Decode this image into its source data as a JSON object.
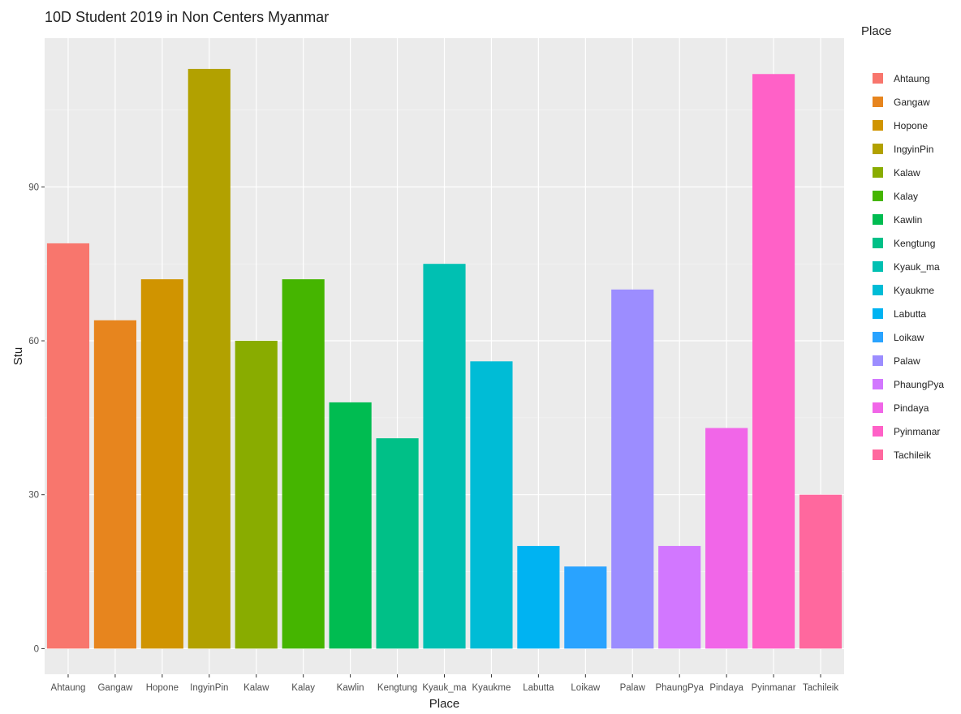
{
  "chart_data": {
    "type": "bar",
    "title": "10D Student 2019 in Non Centers Myanmar",
    "xlabel": "Place",
    "ylabel": "Stu",
    "ylim": [
      -5,
      119
    ],
    "yticks": [
      0,
      30,
      60,
      90
    ],
    "grid": true,
    "legend": {
      "title": "Place",
      "position": "right"
    },
    "categories": [
      "Ahtaung",
      "Gangaw",
      "Hopone",
      "IngyinPin",
      "Kalaw",
      "Kalay",
      "Kawlin",
      "Kengtung",
      "Kyauk_ma",
      "Kyaukme",
      "Labutta",
      "Loikaw",
      "Palaw",
      "PhaungPya",
      "Pindaya",
      "Pyinmanar",
      "Tachileik"
    ],
    "values": [
      79,
      64,
      72,
      113,
      60,
      72,
      48,
      41,
      75,
      56,
      20,
      16,
      70,
      20,
      43,
      112,
      30
    ],
    "colors": [
      "#F8766D",
      "#E7851E",
      "#D09400",
      "#B2A100",
      "#89AC00",
      "#45B500",
      "#00BC51",
      "#00C087",
      "#00C0B2",
      "#00BCD6",
      "#00B3F2",
      "#29A3FF",
      "#9C8DFF",
      "#D277FF",
      "#F166E8",
      "#FF61C7",
      "#FF689E"
    ]
  }
}
